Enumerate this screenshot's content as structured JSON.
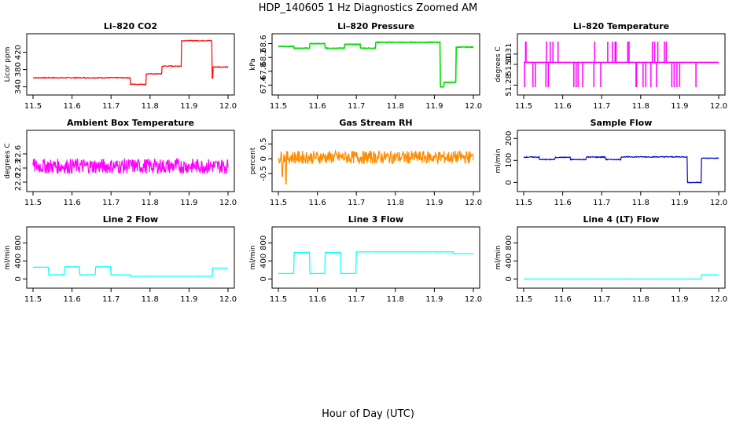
{
  "page": {
    "title": "HDP_140605  1 Hz Diagnostics Zoomed AM",
    "xlabel": "Hour of Day (UTC)"
  },
  "chart_data": [
    {
      "type": "line",
      "title": "Li–820 CO2",
      "ylabel": "Licor ppm",
      "color": "#ff0000",
      "xlim": [
        11.5,
        12.0
      ],
      "ylim": [
        332,
        452
      ],
      "xticks": [
        "11.5",
        "11.6",
        "11.7",
        "11.8",
        "11.9",
        "12.0"
      ],
      "yticks": [
        "340",
        "380",
        "420"
      ],
      "steps": [
        [
          11.5,
          361
        ],
        [
          11.75,
          346
        ],
        [
          11.79,
          370
        ],
        [
          11.83,
          388
        ],
        [
          11.88,
          447
        ],
        [
          11.96,
          386
        ],
        [
          12.0,
          386
        ]
      ],
      "noise": 1.0,
      "spikes": [
        [
          11.96,
          360
        ]
      ]
    },
    {
      "type": "line",
      "title": "Li–820 Pressure",
      "ylabel": "kPa",
      "color": "#00dd00",
      "xlim": [
        11.5,
        12.0
      ],
      "ylim": [
        67.25,
        68.75
      ],
      "xticks": [
        "11.5",
        "11.6",
        "11.7",
        "11.8",
        "11.9",
        "12.0"
      ],
      "yticks": [
        "67.4",
        "67.8",
        "68.2",
        "68.6"
      ],
      "steps": [
        [
          11.5,
          68.52
        ],
        [
          11.54,
          68.47
        ],
        [
          11.58,
          68.6
        ],
        [
          11.62,
          68.47
        ],
        [
          11.67,
          68.58
        ],
        [
          11.71,
          68.47
        ],
        [
          11.75,
          68.64
        ],
        [
          11.915,
          67.35
        ],
        [
          11.925,
          67.48
        ],
        [
          11.955,
          68.5
        ],
        [
          12.0,
          68.5
        ]
      ],
      "noise": 0.01,
      "spikes": []
    },
    {
      "type": "line",
      "title": "Li–820 Temperature",
      "ylabel": "degrees C",
      "color": "#ff00ff",
      "xlim": [
        11.5,
        12.0
      ],
      "ylim": [
        51.275,
        51.325
      ],
      "xticks": [
        "11.5",
        "11.6",
        "11.7",
        "11.8",
        "11.9",
        "12.0"
      ],
      "yticks": [
        "51.28",
        "51.30",
        "51.31"
      ],
      "steps": [
        [
          11.5,
          51.302
        ],
        [
          12.0,
          51.302
        ]
      ],
      "noise": 0,
      "binary": [
        51.278,
        51.322
      ]
    },
    {
      "type": "line",
      "title": "Ambient Box Temperature",
      "ylabel": "degrees C",
      "color": "#ff00ff",
      "xlim": [
        11.5,
        12.0
      ],
      "ylim": [
        21.9,
        23.0
      ],
      "xticks": [
        "11.5",
        "11.6",
        "11.7",
        "11.8",
        "11.9",
        "12.0"
      ],
      "yticks": [
        "22.0",
        "22.3",
        "22.6"
      ],
      "steps": [
        [
          11.5,
          22.34
        ],
        [
          12.0,
          22.34
        ]
      ],
      "noise": 0.16,
      "spikes": []
    },
    {
      "type": "line",
      "title": "Gas Stream RH",
      "ylabel": "percent",
      "color": "#ff8c00",
      "xlim": [
        11.5,
        12.0
      ],
      "ylim": [
        -0.95,
        0.8
      ],
      "xticks": [
        "11.5",
        "11.6",
        "11.7",
        "11.8",
        "11.9",
        "12.0"
      ],
      "yticks": [
        "-0.5",
        "0",
        "0.5"
      ],
      "steps": [
        [
          11.5,
          0.05
        ],
        [
          12.0,
          0.05
        ]
      ],
      "noise": 0.22,
      "spikes": [
        [
          11.51,
          -0.6
        ],
        [
          11.52,
          -0.85
        ]
      ]
    },
    {
      "type": "line",
      "title": "Sample Flow",
      "ylabel": "ml/min",
      "color": "#0000cc",
      "xlim": [
        11.5,
        12.0
      ],
      "ylim": [
        -20,
        215
      ],
      "xticks": [
        "11.5",
        "11.6",
        "11.7",
        "11.8",
        "11.9",
        "12.0"
      ],
      "yticks": [
        "0",
        "100",
        "200"
      ],
      "steps": [
        [
          11.5,
          115
        ],
        [
          11.54,
          104
        ],
        [
          11.58,
          114
        ],
        [
          11.62,
          104
        ],
        [
          11.66,
          115
        ],
        [
          11.71,
          104
        ],
        [
          11.75,
          116
        ],
        [
          11.92,
          0
        ],
        [
          11.955,
          110
        ],
        [
          12.0,
          110
        ]
      ],
      "noise": 2,
      "spikes": []
    },
    {
      "type": "line",
      "title": "Line 2 Flow",
      "ylabel": "ml/min",
      "color": "#00ffff",
      "xlim": [
        11.5,
        12.0
      ],
      "ylim": [
        -100,
        1050
      ],
      "xticks": [
        "11.5",
        "11.6",
        "11.7",
        "11.8",
        "11.9",
        "12.0"
      ],
      "yticks": [
        "0",
        "400",
        "800"
      ],
      "steps": [
        [
          11.5,
          260
        ],
        [
          11.54,
          90
        ],
        [
          11.58,
          270
        ],
        [
          11.62,
          90
        ],
        [
          11.66,
          270
        ],
        [
          11.7,
          90
        ],
        [
          11.75,
          60
        ],
        [
          11.96,
          240
        ],
        [
          12.0,
          240
        ]
      ],
      "noise": 3,
      "spikes": []
    },
    {
      "type": "line",
      "title": "Line 3 Flow",
      "ylabel": "ml/min",
      "color": "#00ffff",
      "xlim": [
        11.5,
        12.0
      ],
      "ylim": [
        -100,
        1050
      ],
      "xticks": [
        "11.5",
        "11.6",
        "11.7",
        "11.8",
        "11.9",
        "12.0"
      ],
      "yticks": [
        "0",
        "400",
        "800"
      ],
      "steps": [
        [
          11.5,
          120
        ],
        [
          11.54,
          590
        ],
        [
          11.58,
          120
        ],
        [
          11.62,
          590
        ],
        [
          11.66,
          120
        ],
        [
          11.7,
          600
        ],
        [
          11.95,
          560
        ],
        [
          12.0,
          560
        ]
      ],
      "noise": 3,
      "spikes": []
    },
    {
      "type": "line",
      "title": "Line 4 (LT) Flow",
      "ylabel": "ml/min",
      "color": "#00ffff",
      "xlim": [
        11.5,
        12.0
      ],
      "ylim": [
        -100,
        1050
      ],
      "xticks": [
        "11.5",
        "11.6",
        "11.7",
        "11.8",
        "11.9",
        "12.0"
      ],
      "yticks": [
        "0",
        "400",
        "800"
      ],
      "steps": [
        [
          11.5,
          0
        ],
        [
          11.955,
          90
        ],
        [
          12.0,
          90
        ]
      ],
      "noise": 1,
      "spikes": []
    }
  ]
}
